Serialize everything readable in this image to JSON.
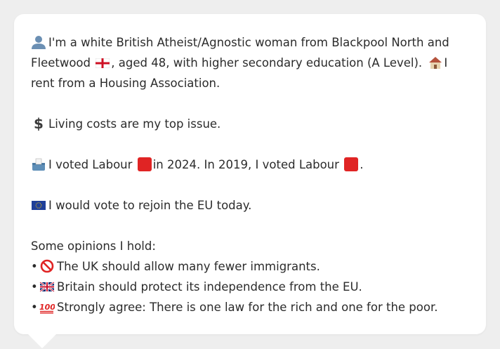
{
  "persona": {
    "intro_a": "I'm a white British Atheist/Agnostic woman from Blackpool North and Fleetwood",
    "intro_b": ", aged 48, with higher secondary education (A Level).",
    "intro_c": "I rent from a Housing Association.",
    "issue": "Living costs are my top issue.",
    "vote_a": "I voted Labour",
    "vote_b": "in 2024. In 2019, I voted Labour",
    "vote_c": ".",
    "eu": "I would vote to rejoin the EU today.",
    "opinions_heading": "Some opinions I hold:",
    "bullet": "•",
    "opinions": [
      "The UK should allow many fewer immigrants.",
      "Britain should protect its independence from the EU.",
      "Strongly agree: There is one law for the rich and one for the poor."
    ]
  },
  "icons": {
    "person": "person-silhouette-icon",
    "flag_england": "flag-england-icon",
    "house": "house-icon",
    "dollar": "dollar-icon",
    "ballot": "ballot-box-icon",
    "labour_square": "red-square-icon",
    "flag_eu": "flag-eu-icon",
    "no_entry": "no-entry-icon",
    "flag_uk": "flag-uk-icon",
    "hundred": "hundred-points-icon"
  },
  "colors": {
    "background": "#eeeeee",
    "bubble": "#ffffff",
    "text": "#2b2b2b",
    "labour_red": "#e02424"
  }
}
